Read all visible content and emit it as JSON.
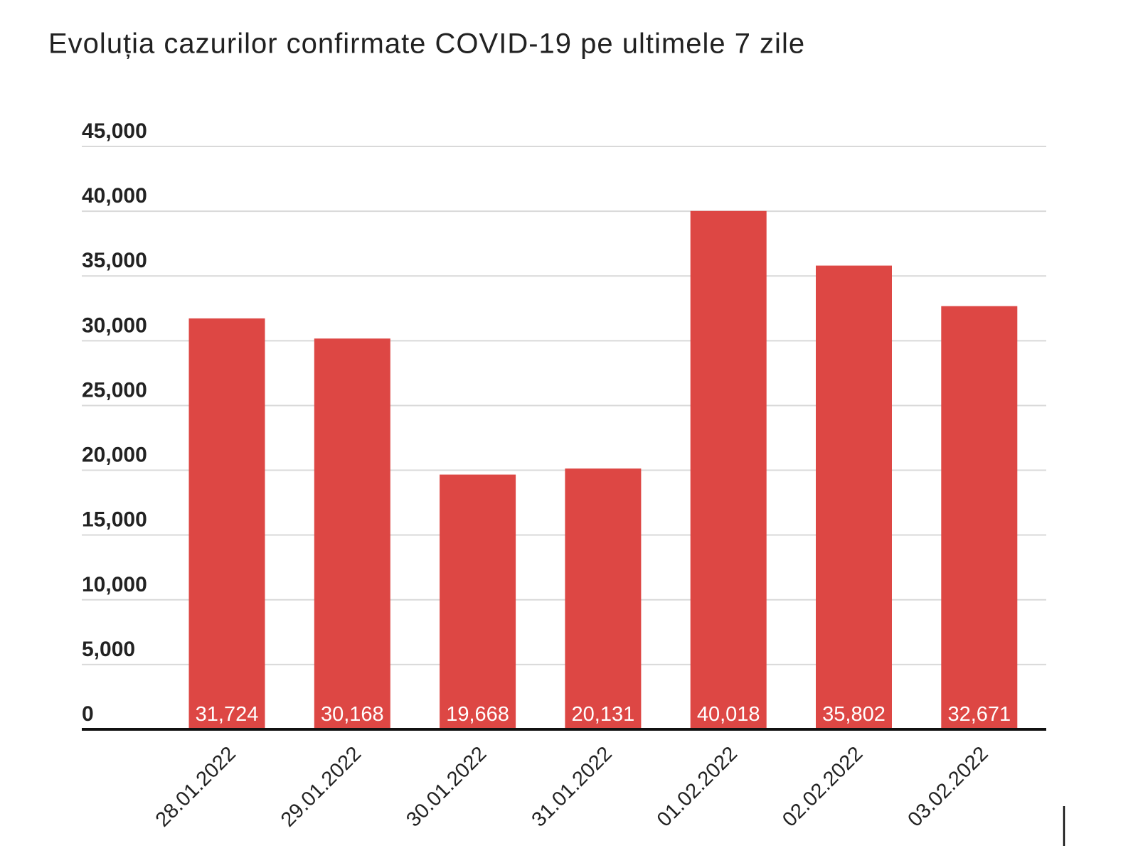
{
  "chart_data": {
    "type": "bar",
    "title": "Evoluția cazurilor confirmate COVID-19 pe ultimele 7 zile",
    "categories": [
      "28.01.2022",
      "29.01.2022",
      "30.01.2022",
      "31.01.2022",
      "01.02.2022",
      "02.02.2022",
      "03.02.2022"
    ],
    "values": [
      31724,
      30168,
      19668,
      20131,
      40018,
      35802,
      32671
    ],
    "value_labels": [
      "31,724",
      "30,168",
      "19,668",
      "20,131",
      "40,018",
      "35,802",
      "32,671"
    ],
    "color": "#dd4744",
    "ylim": [
      0,
      45000
    ],
    "yticks": [
      0,
      {
        "value": 5000,
        "label": "5,000"
      },
      {
        "value": 10000,
        "label": "10,000"
      },
      {
        "value": 15000,
        "label": "15,000"
      },
      {
        "value": 20000,
        "label": "20,000"
      },
      {
        "value": 25000,
        "label": "25,000"
      },
      {
        "value": 30000,
        "label": "30,000"
      },
      {
        "value": 35000,
        "label": "35,000"
      },
      {
        "value": 40000,
        "label": "40,000"
      },
      {
        "value": 45000,
        "label": "45,000"
      }
    ],
    "grid": true
  }
}
